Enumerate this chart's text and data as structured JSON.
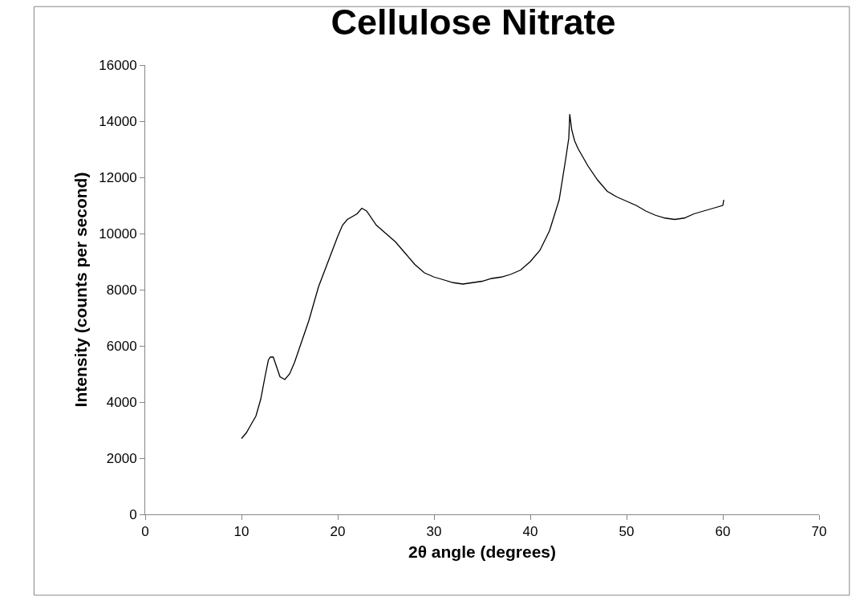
{
  "chart_data": {
    "type": "line",
    "title": "Cellulose Nitrate",
    "xlabel": "2θ angle (degrees)",
    "ylabel": "Intensity (counts per second)",
    "x": [
      10,
      10.5,
      11,
      11.5,
      12,
      12.5,
      12.8,
      13,
      13.3,
      13.6,
      14,
      14.5,
      15,
      15.5,
      16,
      17,
      18,
      19,
      20,
      20.5,
      21,
      22,
      22.5,
      23,
      24,
      25,
      26,
      27,
      28,
      29,
      30,
      31,
      32,
      33,
      34,
      35,
      36,
      37,
      38,
      39,
      40,
      41,
      42,
      43,
      43.7,
      44,
      44.1,
      44.3,
      44.6,
      45,
      46,
      47,
      48,
      49,
      50,
      51,
      52,
      53,
      54,
      55,
      56,
      57,
      58,
      59,
      60,
      60.1
    ],
    "series": [
      {
        "color": "#000000",
        "values": [
          2700,
          2900,
          3200,
          3500,
          4100,
          5000,
          5500,
          5600,
          5600,
          5300,
          4900,
          4800,
          5000,
          5400,
          5900,
          6900,
          8100,
          9000,
          9900,
          10300,
          10500,
          10700,
          10900,
          10800,
          10300,
          10000,
          9700,
          9300,
          8900,
          8600,
          8450,
          8350,
          8250,
          8200,
          8250,
          8300,
          8400,
          8450,
          8550,
          8700,
          9000,
          9400,
          10100,
          11200,
          12700,
          13400,
          14250,
          13700,
          13300,
          13000,
          12400,
          11900,
          11500,
          11300,
          11150,
          11000,
          10800,
          10650,
          10550,
          10500,
          10550,
          10700,
          10800,
          10900,
          11000,
          11200
        ]
      }
    ],
    "xlim": [
      0,
      70
    ],
    "xticks": [
      0,
      10,
      20,
      30,
      40,
      50,
      60,
      70
    ],
    "ylim": [
      0,
      16000
    ],
    "yticks": [
      0,
      2000,
      4000,
      6000,
      8000,
      10000,
      12000,
      14000,
      16000
    ],
    "grid": false,
    "marker": "none",
    "line_style": "solid"
  }
}
